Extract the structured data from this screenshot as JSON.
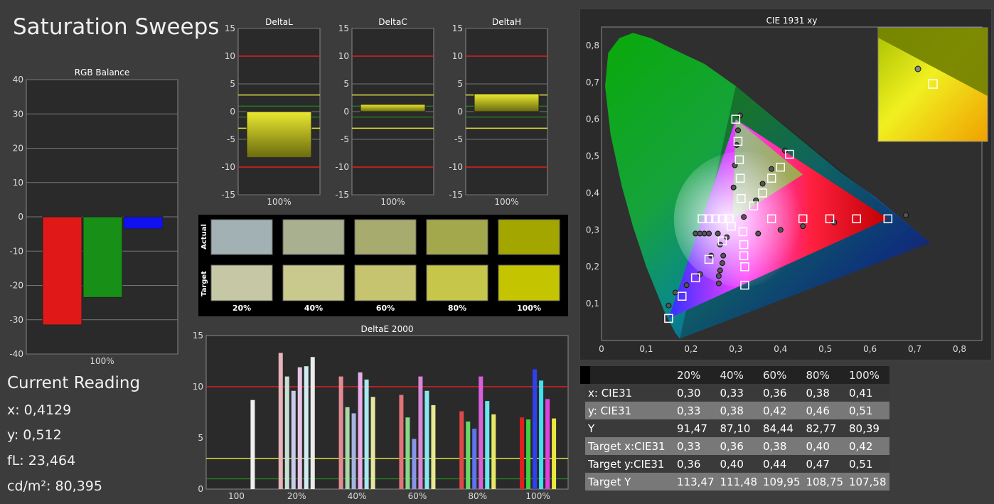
{
  "page": {
    "title": "Saturation Sweeps",
    "reading": {
      "title": "Current Reading",
      "lines": [
        "x: 0,4129",
        "y: 0,512",
        "fL: 23,464",
        "cd/m²: 80,395"
      ]
    }
  },
  "chart_data": [
    {
      "id": "rgb",
      "type": "bar",
      "title": "RGB Balance",
      "categories": [
        "100%"
      ],
      "series": [
        {
          "color": "#e01818",
          "values": [
            -31.5
          ]
        },
        {
          "color": "#189018",
          "values": [
            -23.5
          ]
        },
        {
          "color": "#1010f0",
          "values": [
            -3.5
          ]
        }
      ],
      "ylim": [
        -40,
        40
      ],
      "yticks": [
        "40",
        "30",
        "20",
        "10",
        "0",
        "-10",
        "-20",
        "-30",
        "-40"
      ]
    },
    {
      "id": "dl",
      "type": "bar",
      "title": "DeltaL",
      "categories": [
        "100%"
      ],
      "values": [
        -8.3
      ],
      "ylim": [
        -15,
        15
      ],
      "yticks": [
        "15",
        "10",
        "5",
        "0",
        "-5",
        "-10",
        "-15"
      ]
    },
    {
      "id": "dc",
      "type": "bar",
      "title": "DeltaC",
      "categories": [
        "100%"
      ],
      "values": [
        1.3
      ],
      "ylim": [
        -15,
        15
      ],
      "yticks": [
        "15",
        "10",
        "5",
        "0",
        "-5",
        "-10",
        "-15"
      ]
    },
    {
      "id": "dh",
      "type": "bar",
      "title": "DeltaH",
      "categories": [
        "100%"
      ],
      "values": [
        3.2
      ],
      "ylim": [
        -15,
        15
      ],
      "yticks": [
        "15",
        "10",
        "5",
        "0",
        "-5",
        "-10",
        "-15"
      ]
    },
    {
      "id": "swatches",
      "type": "table",
      "row_labels": [
        "Actual",
        "Target"
      ],
      "columns": [
        "20%",
        "40%",
        "60%",
        "80%",
        "100%"
      ],
      "actual_colors": [
        "#a1b1b4",
        "#a9b08f",
        "#a8ab6e",
        "#a4a84d",
        "#a4a600"
      ],
      "target_colors": [
        "#c6c7a5",
        "#c9c98d",
        "#c6c46e",
        "#c5c64a",
        "#c4c500"
      ]
    },
    {
      "id": "de",
      "type": "bar",
      "title": "DeltaE 2000",
      "categories": [
        "100",
        "20%",
        "40%",
        "60%",
        "80%",
        "100%"
      ],
      "groups": [
        {
          "label": "100",
          "values": [
            8.7
          ],
          "colors": [
            "#f0f0f0"
          ]
        },
        {
          "label": "20%",
          "values": [
            13.3,
            11.0,
            9.6,
            11.9,
            12.0,
            12.9
          ],
          "colors": [
            "#e9b3b8",
            "#c8e0d4",
            "#c8cce8",
            "#e6c6e6",
            "#d0ecf0",
            "#ececec"
          ]
        },
        {
          "label": "40%",
          "values": [
            11.0,
            8.0,
            7.4,
            11.4,
            10.7,
            9.0
          ],
          "colors": [
            "#e48c94",
            "#a8d8a8",
            "#a8b4e0",
            "#e8aee8",
            "#a8e8f0",
            "#e6e6a0"
          ]
        },
        {
          "label": "60%",
          "values": [
            9.2,
            7.0,
            4.9,
            11.0,
            9.6,
            8.2
          ],
          "colors": [
            "#e07478",
            "#88d888",
            "#8894e8",
            "#d888d8",
            "#88e8f0",
            "#e8e890"
          ]
        },
        {
          "label": "80%",
          "values": [
            7.6,
            6.6,
            5.9,
            11.0,
            8.6,
            7.3
          ],
          "colors": [
            "#e04848",
            "#68d868",
            "#6074f0",
            "#d860d8",
            "#68e8f0",
            "#e8e868"
          ]
        },
        {
          "label": "100%",
          "values": [
            7.0,
            6.8,
            11.7,
            10.6,
            8.8,
            6.9
          ],
          "colors": [
            "#e02020",
            "#40d040",
            "#3040f0",
            "#40e0f0",
            "#e040e0",
            "#e8e840"
          ]
        }
      ],
      "ylim": [
        0,
        15
      ],
      "yticks": [
        "15",
        "10",
        "5",
        "0"
      ]
    },
    {
      "id": "cie",
      "type": "scatter",
      "title": "CIE 1931 xy",
      "xlim": [
        0,
        0.85
      ],
      "ylim": [
        0,
        0.85
      ],
      "xticks": [
        "0",
        "0,1",
        "0,2",
        "0,3",
        "0,4",
        "0,5",
        "0,6",
        "0,7",
        "0,8"
      ],
      "yticks": [
        "0,1",
        "0,2",
        "0,3",
        "0,4",
        "0,5",
        "0,6",
        "0,7",
        "0,8"
      ],
      "gamut": {
        "red": [
          0.64,
          0.33
        ],
        "green": [
          0.3,
          0.6
        ],
        "blue": [
          0.15,
          0.06
        ],
        "white": [
          0.3127,
          0.329
        ]
      },
      "targets": [
        [
          0.15,
          0.06
        ],
        [
          0.18,
          0.12
        ],
        [
          0.21,
          0.17
        ],
        [
          0.24,
          0.22
        ],
        [
          0.27,
          0.27
        ],
        [
          0.29,
          0.31
        ],
        [
          0.3,
          0.6
        ],
        [
          0.305,
          0.54
        ],
        [
          0.308,
          0.49
        ],
        [
          0.31,
          0.44
        ],
        [
          0.312,
          0.385
        ],
        [
          0.64,
          0.33
        ],
        [
          0.57,
          0.33
        ],
        [
          0.51,
          0.33
        ],
        [
          0.45,
          0.33
        ],
        [
          0.38,
          0.33
        ],
        [
          0.225,
          0.33
        ],
        [
          0.24,
          0.33
        ],
        [
          0.255,
          0.33
        ],
        [
          0.27,
          0.33
        ],
        [
          0.285,
          0.33
        ],
        [
          0.32,
          0.2
        ],
        [
          0.32,
          0.15
        ],
        [
          0.318,
          0.23
        ],
        [
          0.318,
          0.26
        ],
        [
          0.316,
          0.295
        ],
        [
          0.42,
          0.505
        ],
        [
          0.4,
          0.47
        ],
        [
          0.38,
          0.44
        ],
        [
          0.36,
          0.4
        ],
        [
          0.34,
          0.365
        ]
      ],
      "actuals": [
        [
          0.15,
          0.095
        ],
        [
          0.165,
          0.13
        ],
        [
          0.19,
          0.15
        ],
        [
          0.22,
          0.18
        ],
        [
          0.245,
          0.23
        ],
        [
          0.265,
          0.26
        ],
        [
          0.28,
          0.28
        ],
        [
          0.31,
          0.61
        ],
        [
          0.305,
          0.57
        ],
        [
          0.302,
          0.53
        ],
        [
          0.298,
          0.475
        ],
        [
          0.295,
          0.415
        ],
        [
          0.68,
          0.34
        ],
        [
          0.52,
          0.32
        ],
        [
          0.45,
          0.31
        ],
        [
          0.4,
          0.3
        ],
        [
          0.35,
          0.29
        ],
        [
          0.21,
          0.29
        ],
        [
          0.22,
          0.29
        ],
        [
          0.23,
          0.29
        ],
        [
          0.24,
          0.29
        ],
        [
          0.26,
          0.29
        ],
        [
          0.262,
          0.155
        ],
        [
          0.262,
          0.175
        ],
        [
          0.265,
          0.19
        ],
        [
          0.27,
          0.21
        ],
        [
          0.272,
          0.23
        ],
        [
          0.41,
          0.515
        ],
        [
          0.38,
          0.465
        ],
        [
          0.36,
          0.425
        ],
        [
          0.345,
          0.38
        ],
        [
          0.318,
          0.335
        ]
      ],
      "inset_point": [
        0.4129,
        0.512
      ]
    }
  ],
  "data_table": {
    "header": [
      "",
      "20%",
      "40%",
      "60%",
      "80%",
      "100%"
    ],
    "rows": [
      [
        "x: CIE31",
        "0,30",
        "0,33",
        "0,36",
        "0,38",
        "0,41"
      ],
      [
        "y: CIE31",
        "0,33",
        "0,38",
        "0,42",
        "0,46",
        "0,51"
      ],
      [
        "Y",
        "91,47",
        "87,10",
        "84,44",
        "82,77",
        "80,39"
      ],
      [
        "Target x:CIE31",
        "0,33",
        "0,36",
        "0,38",
        "0,40",
        "0,42"
      ],
      [
        "Target y:CIE31",
        "0,36",
        "0,40",
        "0,44",
        "0,47",
        "0,51"
      ],
      [
        "Target Y",
        "113,47",
        "111,48",
        "109,95",
        "108,75",
        "107,58"
      ]
    ]
  }
}
